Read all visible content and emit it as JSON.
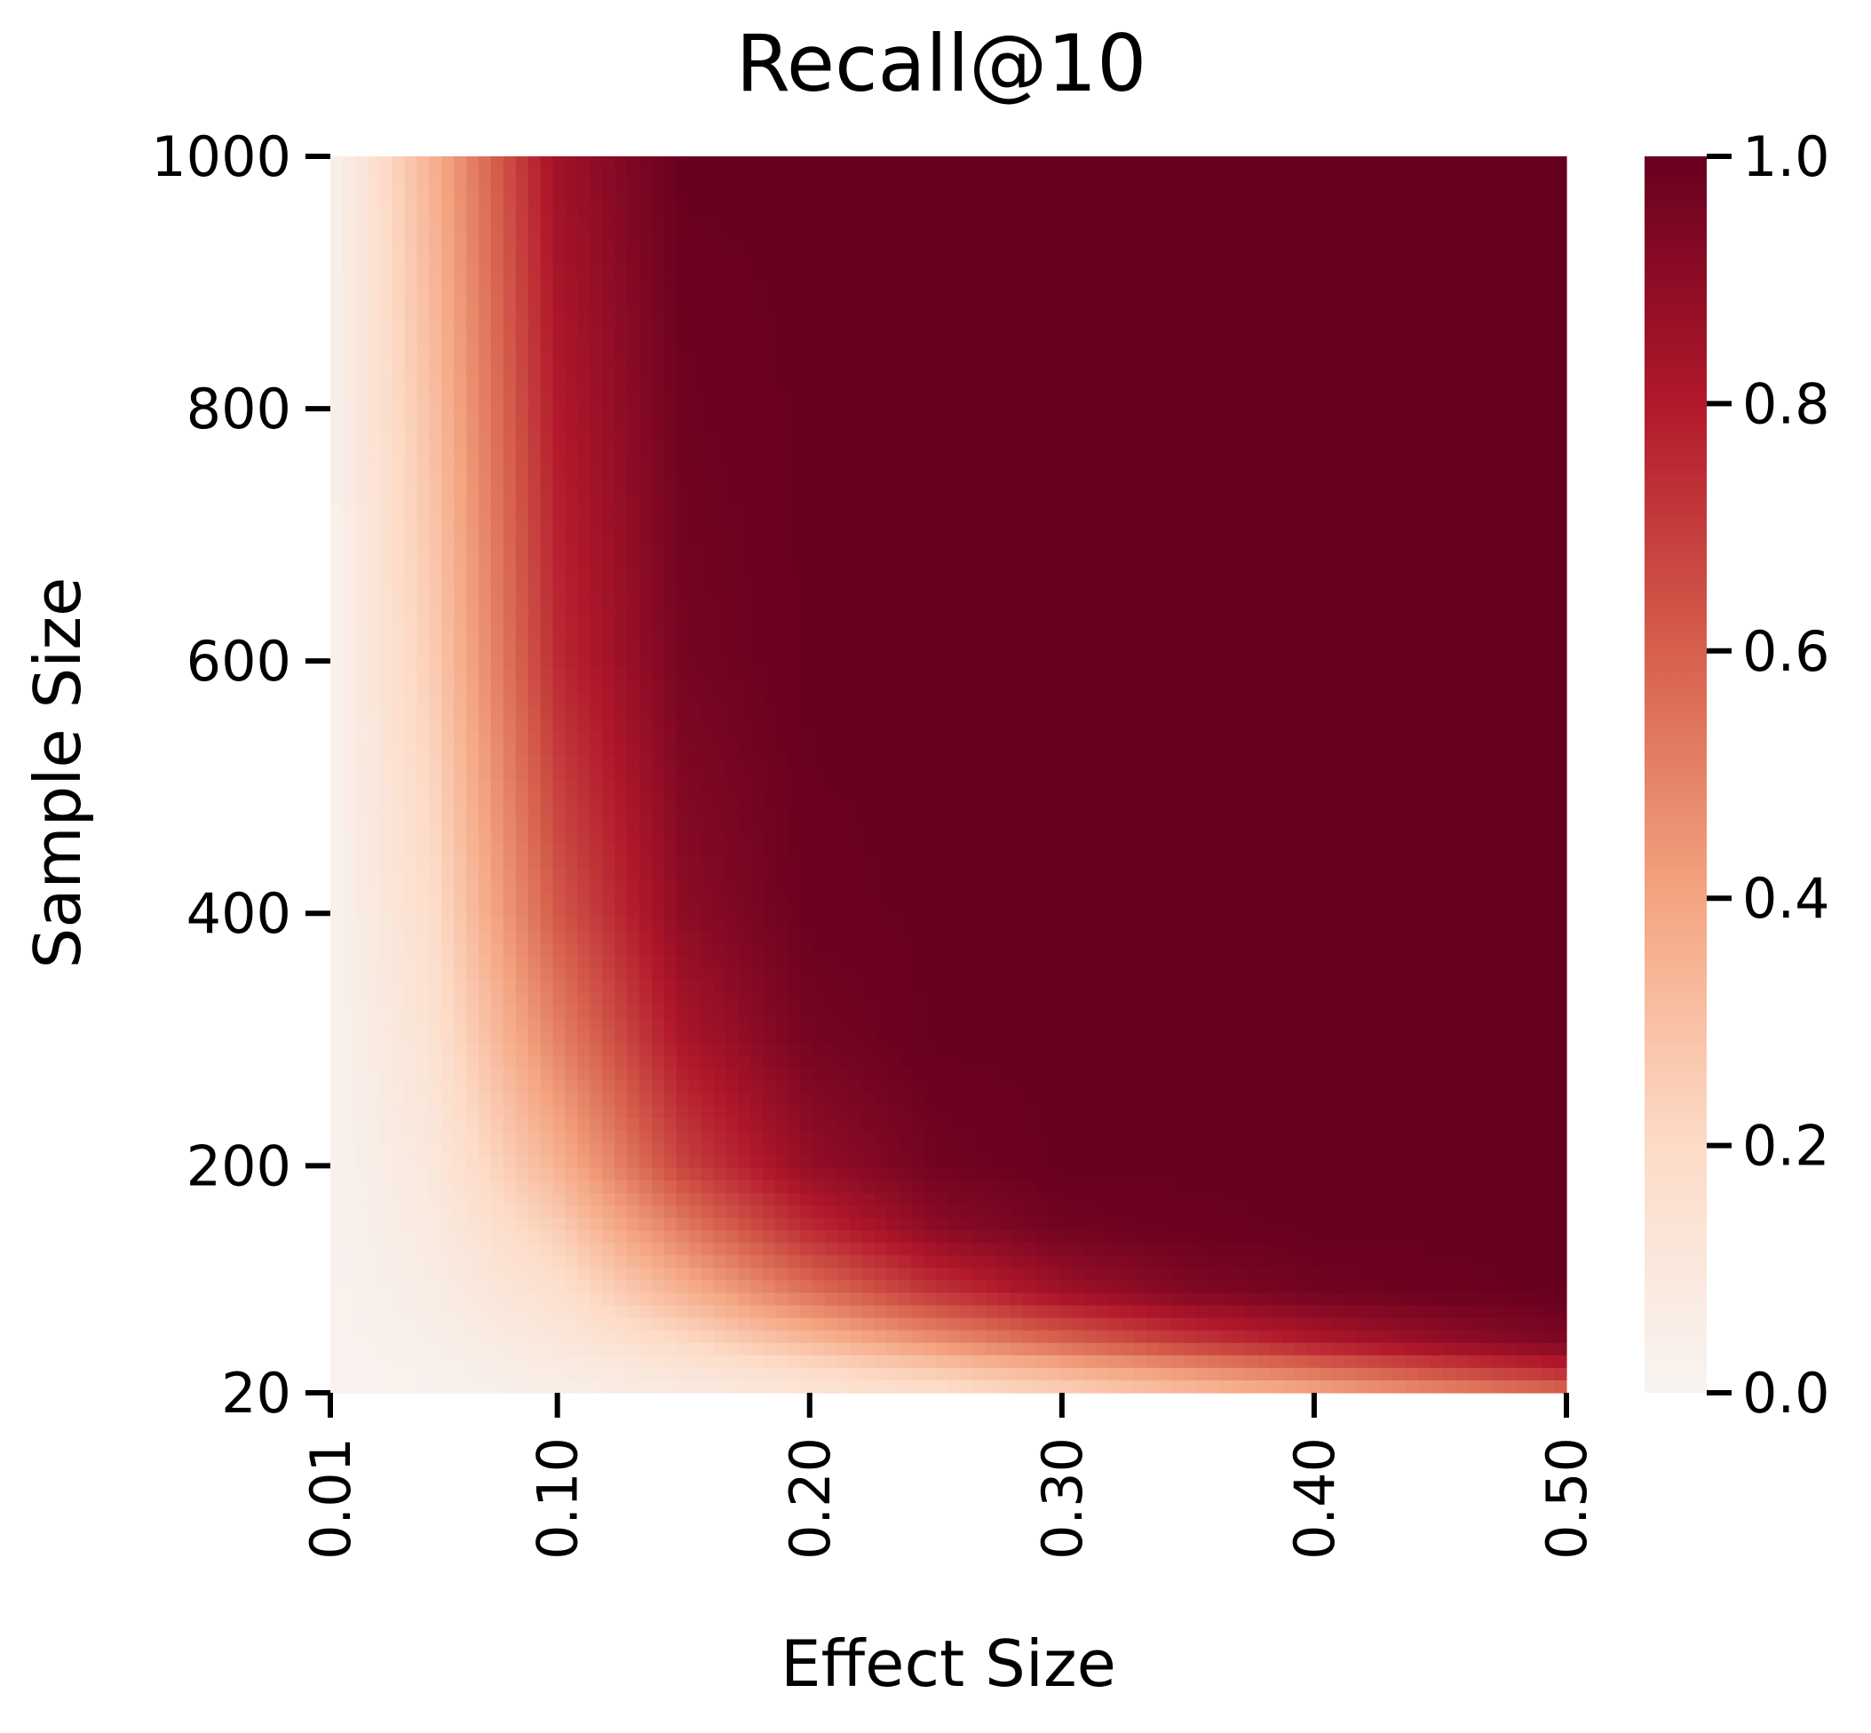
{
  "chart_data": {
    "type": "heatmap",
    "title": "Recall@10",
    "xlabel": "Effect Size",
    "ylabel": "Sample Size",
    "x_range": [
      0.01,
      0.5
    ],
    "y_range": [
      20,
      1000
    ],
    "x_ticks": [
      "0.01",
      "0.10",
      "0.20",
      "0.30",
      "0.40",
      "0.50"
    ],
    "x_tick_values": [
      0.01,
      0.1,
      0.2,
      0.3,
      0.4,
      0.5
    ],
    "y_ticks": [
      "1000",
      "800",
      "600",
      "400",
      "200",
      "20"
    ],
    "y_tick_values": [
      1000,
      800,
      600,
      400,
      200,
      20
    ],
    "colorbar": {
      "range": [
        0.0,
        1.0
      ],
      "ticks": [
        "1.0",
        "0.8",
        "0.6",
        "0.4",
        "0.2",
        "0.0"
      ],
      "tick_values": [
        1.0,
        0.8,
        0.6,
        0.4,
        0.2,
        0.0
      ],
      "colormap": "Reds (white to dark red)",
      "stops": [
        "#f7f4f2",
        "#fddbc7",
        "#f4a582",
        "#d6604d",
        "#b2182b",
        "#67001f"
      ]
    },
    "x_values": [
      0.01,
      0.05,
      0.1,
      0.15,
      0.2,
      0.25,
      0.3,
      0.35,
      0.4,
      0.45,
      0.5
    ],
    "y_values": [
      1000,
      800,
      600,
      400,
      300,
      200,
      150,
      100,
      60,
      40,
      20
    ],
    "z": [
      [
        0.02,
        0.35,
        0.85,
        1.0,
        1.0,
        1.0,
        1.0,
        1.0,
        1.0,
        1.0,
        1.0
      ],
      [
        0.02,
        0.3,
        0.8,
        0.98,
        1.0,
        1.0,
        1.0,
        1.0,
        1.0,
        1.0,
        1.0
      ],
      [
        0.02,
        0.25,
        0.75,
        0.96,
        1.0,
        1.0,
        1.0,
        1.0,
        1.0,
        1.0,
        1.0
      ],
      [
        0.02,
        0.18,
        0.62,
        0.9,
        0.99,
        1.0,
        1.0,
        1.0,
        1.0,
        1.0,
        1.0
      ],
      [
        0.02,
        0.14,
        0.5,
        0.82,
        0.96,
        1.0,
        1.0,
        1.0,
        1.0,
        1.0,
        1.0
      ],
      [
        0.02,
        0.1,
        0.35,
        0.68,
        0.88,
        0.97,
        1.0,
        1.0,
        1.0,
        1.0,
        1.0
      ],
      [
        0.02,
        0.08,
        0.25,
        0.52,
        0.75,
        0.9,
        0.97,
        0.99,
        1.0,
        1.0,
        1.0
      ],
      [
        0.02,
        0.06,
        0.16,
        0.35,
        0.55,
        0.72,
        0.85,
        0.93,
        0.97,
        0.99,
        1.0
      ],
      [
        0.02,
        0.04,
        0.1,
        0.2,
        0.32,
        0.45,
        0.58,
        0.7,
        0.8,
        0.88,
        0.94
      ],
      [
        0.02,
        0.03,
        0.07,
        0.13,
        0.2,
        0.28,
        0.37,
        0.47,
        0.57,
        0.68,
        0.78
      ],
      [
        0.02,
        0.03,
        0.05,
        0.08,
        0.12,
        0.17,
        0.23,
        0.3,
        0.38,
        0.47,
        0.56
      ]
    ],
    "grid": false
  }
}
